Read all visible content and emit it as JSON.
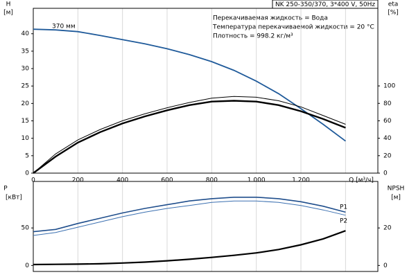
{
  "chart_data": [
    {
      "type": "line",
      "title": "NK 250-350/370, 3*400 V, 50Hz",
      "annotations": [
        "Перекачиваемая жидкость = Вода",
        "Температура перекачиваемой жидкости = 20 °C",
        "Плотность = 998.2 кг/м³"
      ],
      "xlabel": "Q [м³/ч]",
      "ylabel": "H",
      "yunit": "[м]",
      "y2label": "eta",
      "y2unit": "[%]",
      "x": [
        0,
        100,
        200,
        300,
        400,
        500,
        600,
        700,
        800,
        900,
        1000,
        1100,
        1200,
        1300,
        1400
      ],
      "xlim": [
        0,
        1545
      ],
      "xticks": [
        0,
        200,
        400,
        600,
        800,
        {
          "value": 1000,
          "label": "1 000"
        },
        {
          "value": 1200,
          "label": "1 200"
        }
      ],
      "ylim": [
        0,
        47.3
      ],
      "yticks": [
        0,
        5,
        10,
        15,
        20,
        25,
        30,
        35,
        40
      ],
      "y2lim": [
        0,
        189
      ],
      "y2ticks": [
        0,
        20,
        40,
        60,
        80,
        100
      ],
      "grid": true,
      "series": [
        {
          "name": "370 мм",
          "color": "#1f5a9a",
          "linewidth": 1.8,
          "values": [
            41.3,
            41.1,
            40.6,
            39.5,
            38.3,
            37.1,
            35.7,
            34,
            32,
            29.5,
            26.4,
            22.8,
            18.5,
            14,
            9.2
          ]
        },
        {
          "color": "#000000",
          "linewidth": 1,
          "axis": "y2",
          "values": [
            0,
            22,
            38,
            50,
            60,
            68,
            75,
            81,
            86,
            88,
            87,
            83,
            76,
            66,
            56
          ]
        },
        {
          "color": "#000000",
          "linewidth": 2.4,
          "axis": "y2",
          "values": [
            0,
            19,
            35,
            47,
            57,
            65,
            72,
            78,
            82,
            83,
            82,
            78,
            71,
            62,
            52
          ]
        }
      ]
    },
    {
      "type": "line",
      "ylabel": "P",
      "yunit": "[кВт]",
      "y2label": "NPSH",
      "y2unit": "[м]",
      "x": [
        0,
        100,
        200,
        300,
        400,
        500,
        600,
        700,
        800,
        900,
        1000,
        1100,
        1200,
        1300,
        1400
      ],
      "xlim": [
        0,
        1545
      ],
      "ylim": [
        -8,
        112
      ],
      "yticks": [
        0,
        50
      ],
      "y2lim": [
        -3.2,
        44.8
      ],
      "y2ticks": [
        0,
        20
      ],
      "grid": true,
      "series": [
        {
          "name": "P1",
          "color": "#1f4e8c",
          "linewidth": 1.6,
          "values": [
            45,
            48,
            56,
            63,
            70,
            76,
            81,
            86,
            89,
            91,
            91,
            89,
            85,
            79,
            71
          ]
        },
        {
          "name": "P2",
          "color": "#3a6fb0",
          "linewidth": 1,
          "values": [
            40,
            44,
            51,
            58,
            65,
            71,
            76,
            80,
            84,
            86,
            86,
            84,
            80,
            74,
            67
          ]
        },
        {
          "color": "#000000",
          "linewidth": 2.2,
          "axis": "y2",
          "values": [
            0.5,
            0.6,
            0.7,
            0.9,
            1.3,
            1.8,
            2.5,
            3.3,
            4.3,
            5.4,
            6.7,
            8.5,
            11,
            14.2,
            18.5
          ]
        }
      ]
    }
  ]
}
